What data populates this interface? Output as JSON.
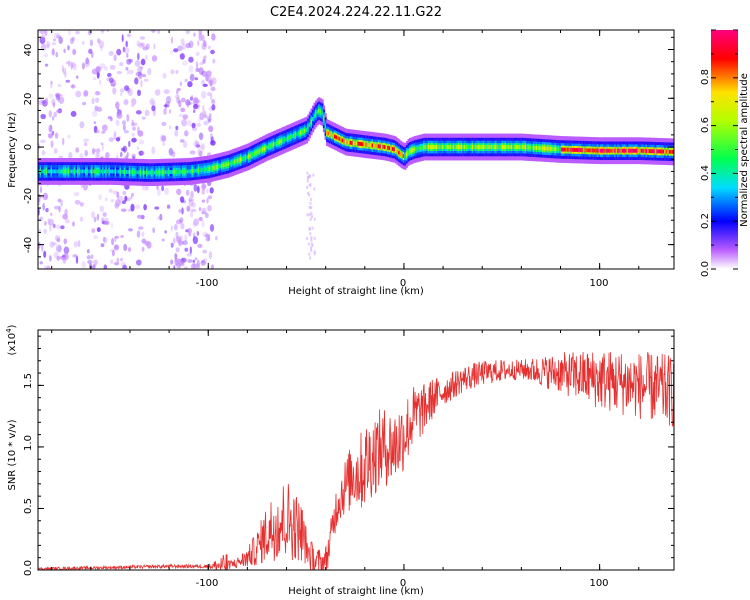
{
  "title": "C2E4.2024.224.22.11.G22",
  "colorbar": {
    "label": "Normalized spectral amplitude",
    "ticks": [
      "0.0",
      "0.2",
      "0.4",
      "0.6",
      "0.8"
    ]
  },
  "chart_data": [
    {
      "type": "heatmap",
      "xlabel": "Height of straight line (km)",
      "ylabel": "Frequency (Hz)",
      "xlim": [
        -187,
        138
      ],
      "ylim": [
        -50,
        48
      ],
      "x_ticks": [
        "-100",
        "0",
        "100"
      ],
      "y_ticks": [
        "-40",
        "-20",
        "0",
        "20",
        "40"
      ],
      "ridge": {
        "x": [
          -187,
          -170,
          -150,
          -130,
          -110,
          -100,
          -90,
          -80,
          -70,
          -60,
          -50,
          -48,
          -46,
          -44,
          -42,
          -40,
          -35,
          -30,
          -25,
          -20,
          -15,
          -10,
          -5,
          -2,
          0,
          2,
          5,
          10,
          20,
          40,
          60,
          80,
          100,
          120,
          138
        ],
        "y": [
          -10,
          -10,
          -10,
          -10.5,
          -10,
          -9,
          -7,
          -4,
          0,
          3.5,
          7,
          10,
          13,
          15,
          14,
          6,
          4,
          2,
          1.5,
          1,
          0.5,
          0,
          -1,
          -3,
          -4,
          -2,
          -1,
          0,
          0,
          0,
          0,
          -1,
          -1.5,
          -1.5,
          -2
        ]
      },
      "colorscale": [
        "#ffffff",
        "#ba5cff",
        "#0000ff",
        "#00dcff",
        "#00ff50",
        "#ffe100",
        "#ff0000",
        "#ff0080"
      ],
      "zlim": [
        0,
        1
      ]
    },
    {
      "type": "line",
      "xlabel": "Height of straight line (km)",
      "ylabel": "SNR (10 * v/v)",
      "y_multiplier": "(x10",
      "y_multiplier_exp": "4",
      "y_multiplier_close": ")",
      "xlim": [
        -187,
        138
      ],
      "ylim": [
        0,
        1.95
      ],
      "x_ticks": [
        "-100",
        "0",
        "100"
      ],
      "y_ticks": [
        "0.0",
        "0.5",
        "1.0",
        "1.5"
      ],
      "color": "#e53030",
      "envelope": {
        "x": [
          -187,
          -150,
          -120,
          -100,
          -90,
          -85,
          -80,
          -75,
          -70,
          -65,
          -60,
          -55,
          -52,
          -50,
          -48,
          -45,
          -42,
          -40,
          -38,
          -36,
          -34,
          -32,
          -30,
          -28,
          -26,
          -24,
          -22,
          -20,
          -15,
          -10,
          -5,
          0,
          5,
          10,
          15,
          20,
          25,
          30,
          40,
          50,
          60,
          80,
          100,
          120,
          138
        ],
        "y": [
          0.01,
          0.02,
          0.03,
          0.03,
          0.04,
          0.06,
          0.1,
          0.18,
          0.3,
          0.38,
          0.42,
          0.35,
          0.3,
          0.2,
          0.12,
          0.06,
          0.05,
          0.08,
          0.2,
          0.4,
          0.55,
          0.62,
          0.68,
          0.72,
          0.8,
          0.78,
          0.8,
          0.85,
          0.95,
          1.0,
          1.0,
          1.1,
          1.25,
          1.3,
          1.4,
          1.45,
          1.5,
          1.55,
          1.6,
          1.62,
          1.63,
          1.6,
          1.55,
          1.5,
          1.45
        ]
      },
      "noise": {
        "x": [
          -187,
          -100,
          -80,
          -40,
          -20,
          0,
          20,
          60,
          100,
          138
        ],
        "amp": [
          0.01,
          0.015,
          0.2,
          0.12,
          0.35,
          0.3,
          0.12,
          0.08,
          0.25,
          0.3
        ]
      }
    }
  ]
}
